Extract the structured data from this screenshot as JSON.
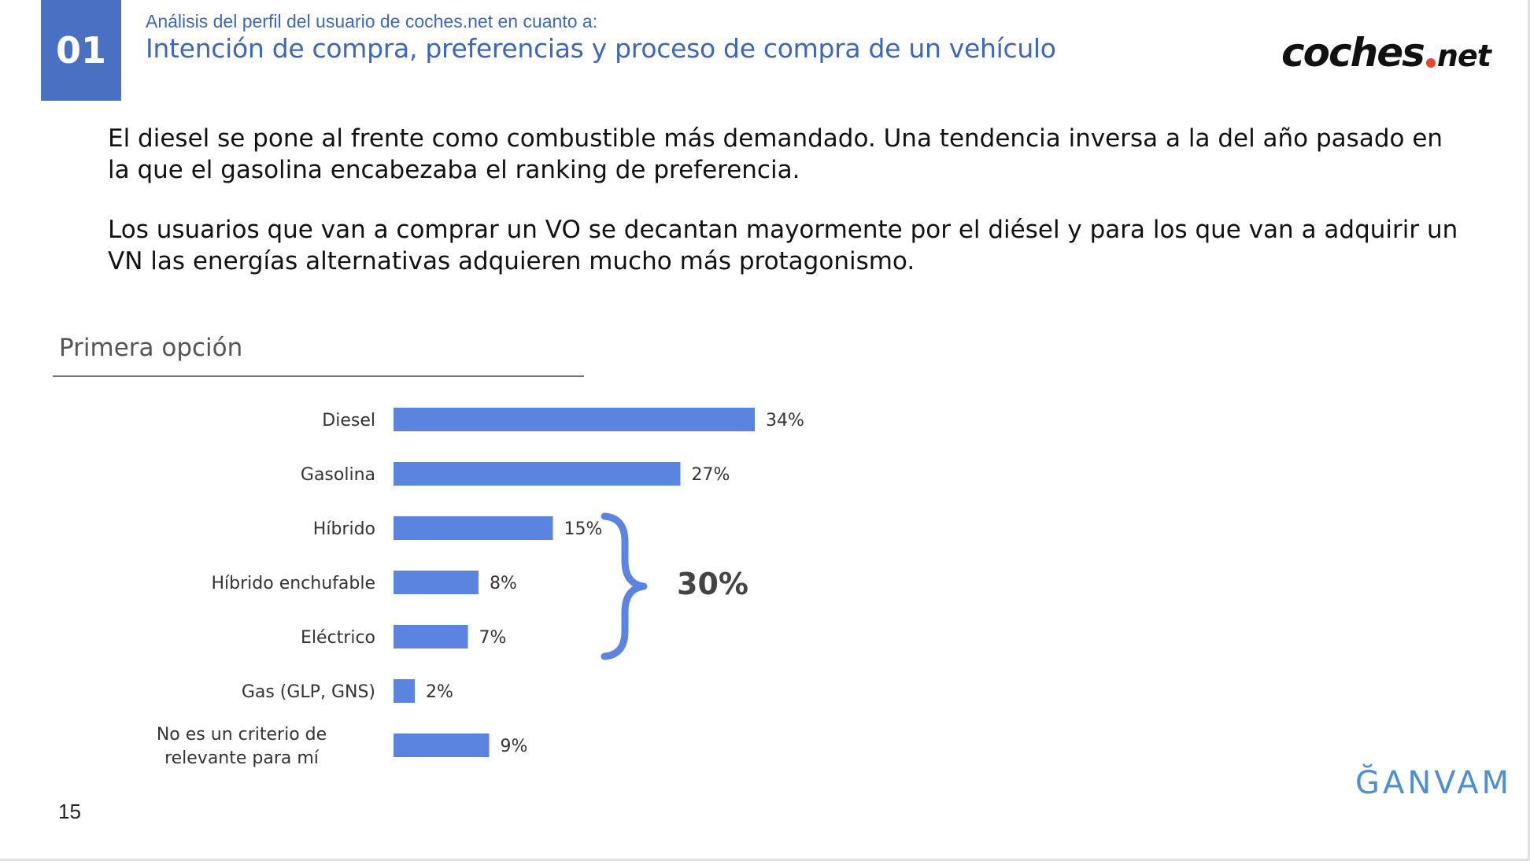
{
  "header": {
    "section_number": "01",
    "subtitle": "Análisis del perfil del usuario de coches.net en cuanto a:",
    "title": "Intención de compra, preferencias y proceso de compra de un vehículo",
    "logo_main": "coches",
    "logo_tld": "net"
  },
  "body": {
    "paragraph_1": "El diesel se pone al frente como combustible más demandado. Una tendencia inversa a la del año pasado en la que el gasolina encabezaba el ranking de preferencia.",
    "paragraph_2": "Los usuarios que van a comprar un VO se decantan mayormente por el diésel y para los que van a adquirir un VN las energías alternativas adquieren mucho más protagonismo."
  },
  "section_label": "Primera opción",
  "chart_data": {
    "type": "bar",
    "orientation": "horizontal",
    "categories": [
      "Diesel",
      "Gasolina",
      "Híbrido",
      "Híbrido enchufable",
      "Eléctrico",
      "Gas (GLP, GNS)",
      "No es un criterio de relevante para mí"
    ],
    "values": [
      34,
      27,
      15,
      8,
      7,
      2,
      9
    ],
    "value_labels": [
      "34%",
      "27%",
      "15%",
      "8%",
      "7%",
      "2%",
      "9%"
    ],
    "bar_color": "#5b84e0",
    "grid": false,
    "legend": "none",
    "annotations": [
      {
        "type": "brace",
        "groups": [
          "Híbrido",
          "Híbrido enchufable",
          "Eléctrico"
        ],
        "label": "30%"
      }
    ]
  },
  "footer": {
    "page_number": "15",
    "brand": "ĞANVAM"
  },
  "colors": {
    "accent": "#4a70c4",
    "title_blue": "#3d66c0",
    "bar": "#5b84e0",
    "brace": "#5b84e0",
    "logo_dot": "#e8472f",
    "ganvam": "#4c8fd6"
  }
}
